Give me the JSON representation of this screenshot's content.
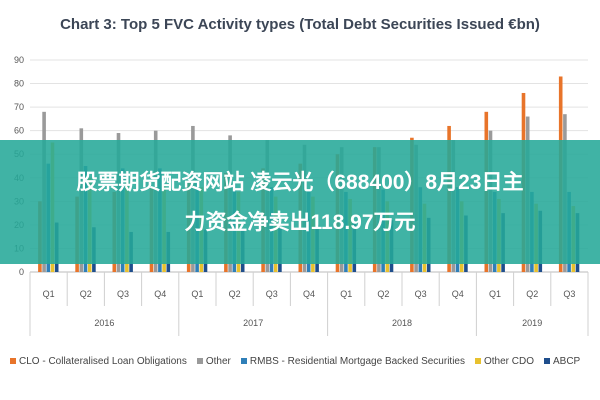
{
  "banner": {
    "line1": "股票期货配资网站 凌云光（688400）8月23日主",
    "line2": "力资金净卖出118.97万元"
  },
  "chart_data": {
    "type": "bar",
    "title": "Chart 3: Top 5 FVC Activity types (Total Debt Securities Issued €bn)",
    "ylim": [
      0,
      90
    ],
    "yticks": [
      0,
      10,
      20,
      30,
      40,
      50,
      60,
      70,
      80,
      90
    ],
    "grid": true,
    "legend_position": "bottom",
    "categories": [
      "Q1",
      "Q2",
      "Q3",
      "Q4",
      "Q1",
      "Q2",
      "Q3",
      "Q4",
      "Q1",
      "Q2",
      "Q3",
      "Q4",
      "Q1",
      "Q2",
      "Q3"
    ],
    "groups": [
      {
        "label": "2016",
        "count": 4
      },
      {
        "label": "2017",
        "count": 4
      },
      {
        "label": "2018",
        "count": 4
      },
      {
        "label": "2019",
        "count": 3
      }
    ],
    "series": [
      {
        "name": "CLO - Collateralised Loan Obligations",
        "color": "#e8742a",
        "values": [
          30,
          32,
          34,
          36,
          38,
          42,
          44,
          46,
          50,
          53,
          57,
          62,
          68,
          76,
          83
        ]
      },
      {
        "name": "Other",
        "color": "#9a9a9a",
        "values": [
          68,
          61,
          59,
          60,
          62,
          58,
          56,
          54,
          53,
          53,
          54,
          56,
          60,
          66,
          67
        ]
      },
      {
        "name": "RMBS - Residential Mortgage Backed Securities",
        "color": "#2f7fb8",
        "values": [
          46,
          45,
          44,
          44,
          40,
          38,
          36,
          35,
          34,
          35,
          36,
          36,
          34,
          34,
          34
        ]
      },
      {
        "name": "Other CDO",
        "color": "#e8c12e",
        "values": [
          55,
          40,
          38,
          37,
          36,
          34,
          32,
          32,
          31,
          30,
          29,
          30,
          31,
          29,
          28
        ]
      },
      {
        "name": "ABCP",
        "color": "#1f4e8c",
        "values": [
          21,
          19,
          17,
          17,
          18,
          18,
          19,
          20,
          21,
          22,
          23,
          24,
          25,
          26,
          25
        ]
      }
    ]
  }
}
